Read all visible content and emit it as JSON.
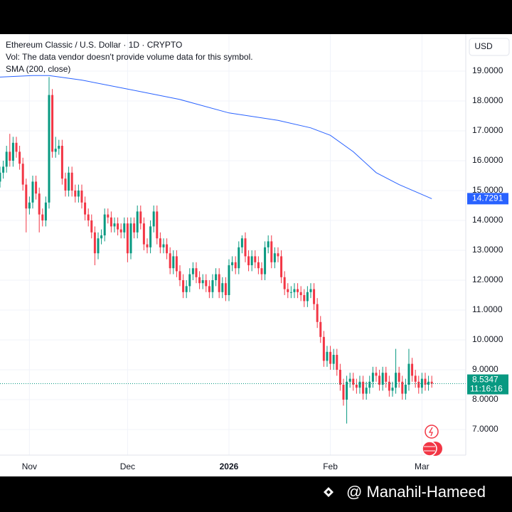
{
  "chart_data": {
    "type": "candlestick",
    "title": "Ethereum Classic / U.S. Dollar · 1D · CRYPTO",
    "subtitle": "Vol: The data vendor doesn't provide volume data for this symbol.",
    "currency": "USD",
    "up_color": "#089981",
    "down_color": "#f23645",
    "x": [
      0,
      1,
      2,
      3,
      4,
      5,
      6,
      7,
      8,
      9,
      10,
      11,
      12,
      13,
      14,
      15,
      16,
      17,
      18,
      19,
      20,
      21,
      22,
      23,
      24,
      25,
      26,
      27,
      28,
      29,
      30,
      31,
      32,
      33,
      34,
      35,
      36,
      37,
      38,
      39,
      40,
      41,
      42,
      43,
      44,
      45,
      46,
      47,
      48,
      49,
      50,
      51,
      52,
      53,
      54,
      55,
      56,
      57,
      58,
      59,
      60,
      61,
      62,
      63,
      64,
      65,
      66,
      67,
      68,
      69,
      70,
      71,
      72,
      73,
      74,
      75,
      76,
      77,
      78,
      79,
      80,
      81,
      82,
      83,
      84,
      85,
      86,
      87,
      88,
      89,
      90,
      91,
      92,
      93,
      94,
      95,
      96,
      97,
      98,
      99,
      100,
      101,
      102,
      103,
      104,
      105,
      106,
      107,
      108,
      109,
      110,
      111,
      112,
      113,
      114,
      115,
      116,
      117,
      118,
      119,
      120,
      121,
      122,
      123,
      124,
      125,
      126,
      127,
      128,
      129,
      130,
      131,
      132
    ],
    "open": [
      15.3,
      15.6,
      15.8,
      16.3,
      16.0,
      16.6,
      16.3,
      15.9,
      15.2,
      14.4,
      14.6,
      15.3,
      14.9,
      14.2,
      14.0,
      14.6,
      18.2,
      16.3,
      16.4,
      16.5,
      15.4,
      15.0,
      15.6,
      15.0,
      14.8,
      15.0,
      14.6,
      14.2,
      14.0,
      13.6,
      12.9,
      13.4,
      13.5,
      14.2,
      14.1,
      13.8,
      13.9,
      13.7,
      13.6,
      13.9,
      12.9,
      13.9,
      13.6,
      14.3,
      13.9,
      13.2,
      13.1,
      13.8,
      14.3,
      13.4,
      13.1,
      13.2,
      12.9,
      12.4,
      12.8,
      12.3,
      12.0,
      11.6,
      11.8,
      12.2,
      12.4,
      12.1,
      11.9,
      12.0,
      11.8,
      11.6,
      12.0,
      12.2,
      11.6,
      11.9,
      11.5,
      12.5,
      12.6,
      12.4,
      13.1,
      13.4,
      12.8,
      12.5,
      12.8,
      12.6,
      12.4,
      12.2,
      13.1,
      13.3,
      12.6,
      12.9,
      12.8,
      12.1,
      11.7,
      11.6,
      11.6,
      11.7,
      11.6,
      11.5,
      11.3,
      11.6,
      11.7,
      11.2,
      10.6,
      10.1,
      9.3,
      9.6,
      9.2,
      9.5,
      9.0,
      8.5,
      8.0,
      8.6,
      8.7,
      8.5,
      8.4,
      8.6,
      8.2,
      8.4,
      8.6,
      8.9,
      8.8,
      8.5,
      8.9,
      8.6,
      8.3,
      8.4,
      8.9,
      8.6,
      8.2,
      8.5,
      9.2,
      8.8,
      8.6,
      8.4,
      8.7,
      8.5,
      8.6
    ],
    "high": [
      15.8,
      16.0,
      16.5,
      16.9,
      16.8,
      16.8,
      16.5,
      16.1,
      15.4,
      14.8,
      15.5,
      15.5,
      15.1,
      14.4,
      14.8,
      18.8,
      18.4,
      16.8,
      16.7,
      16.7,
      15.6,
      15.8,
      15.8,
      15.2,
      15.2,
      15.2,
      14.8,
      14.4,
      14.2,
      13.8,
      13.6,
      13.7,
      14.4,
      14.4,
      14.3,
      14.1,
      14.1,
      13.9,
      14.1,
      14.1,
      14.1,
      14.1,
      14.5,
      14.5,
      14.1,
      13.4,
      14.0,
      14.5,
      14.5,
      13.6,
      13.4,
      13.4,
      13.1,
      13.0,
      13.0,
      12.5,
      12.2,
      12.0,
      12.4,
      12.6,
      12.6,
      12.3,
      12.2,
      12.2,
      12.0,
      12.2,
      12.4,
      12.4,
      12.1,
      12.1,
      12.7,
      12.8,
      12.8,
      13.3,
      13.5,
      13.6,
      13.0,
      13.0,
      13.0,
      12.8,
      12.6,
      13.3,
      13.5,
      13.5,
      13.1,
      13.1,
      13.0,
      12.3,
      11.9,
      11.8,
      11.9,
      11.9,
      11.8,
      11.7,
      11.8,
      11.9,
      11.9,
      11.4,
      10.8,
      10.3,
      9.8,
      9.8,
      9.7,
      9.7,
      9.2,
      8.7,
      8.8,
      8.9,
      8.9,
      8.7,
      8.8,
      8.8,
      8.6,
      8.8,
      9.1,
      9.1,
      9.0,
      9.1,
      9.1,
      8.8,
      8.6,
      9.7,
      9.1,
      8.8,
      8.7,
      9.7,
      9.4,
      9.0,
      8.8,
      8.9,
      8.9,
      8.8,
      8.8
    ],
    "low": [
      15.1,
      15.4,
      15.6,
      15.8,
      15.8,
      16.1,
      15.7,
      15.0,
      13.6,
      14.2,
      14.4,
      14.7,
      13.6,
      13.8,
      13.8,
      14.4,
      16.1,
      16.1,
      16.2,
      15.2,
      14.8,
      14.8,
      14.8,
      14.6,
      14.6,
      14.4,
      14.0,
      13.8,
      13.4,
      12.5,
      12.7,
      13.2,
      13.3,
      13.9,
      13.6,
      13.6,
      13.5,
      13.4,
      13.4,
      12.6,
      12.7,
      13.4,
      13.4,
      13.7,
      13.0,
      12.9,
      12.9,
      13.6,
      13.2,
      12.9,
      12.9,
      12.7,
      12.2,
      12.2,
      12.1,
      11.8,
      11.4,
      11.4,
      11.6,
      12.0,
      11.9,
      11.7,
      11.7,
      11.6,
      11.4,
      11.4,
      11.8,
      11.4,
      11.4,
      11.3,
      11.3,
      12.3,
      12.2,
      12.2,
      12.9,
      12.6,
      12.3,
      12.3,
      12.4,
      12.2,
      12.0,
      12.0,
      12.9,
      12.4,
      12.4,
      12.6,
      11.9,
      11.5,
      11.4,
      11.4,
      11.4,
      11.4,
      11.3,
      11.1,
      11.1,
      11.4,
      11.0,
      10.4,
      9.9,
      9.1,
      9.1,
      9.0,
      9.0,
      8.8,
      8.3,
      7.8,
      7.2,
      8.4,
      8.3,
      8.2,
      8.2,
      8.0,
      8.0,
      8.2,
      8.4,
      8.6,
      8.3,
      8.3,
      8.4,
      8.1,
      8.1,
      8.2,
      8.4,
      8.0,
      8.0,
      8.3,
      8.6,
      8.4,
      8.2,
      8.2,
      8.3,
      8.3,
      8.4
    ],
    "close": [
      15.6,
      15.8,
      16.3,
      16.0,
      16.6,
      16.3,
      15.9,
      15.2,
      14.4,
      14.6,
      15.3,
      14.9,
      14.2,
      14.0,
      14.6,
      18.2,
      16.3,
      16.4,
      16.5,
      15.4,
      15.0,
      15.6,
      15.0,
      14.8,
      15.0,
      14.6,
      14.2,
      14.0,
      13.6,
      12.9,
      13.4,
      13.5,
      14.2,
      14.1,
      13.8,
      13.9,
      13.7,
      13.6,
      13.9,
      12.9,
      13.9,
      13.6,
      14.3,
      13.9,
      13.2,
      13.1,
      13.8,
      14.3,
      13.4,
      13.1,
      13.2,
      12.9,
      12.4,
      12.8,
      12.3,
      12.0,
      11.6,
      11.8,
      12.2,
      12.4,
      12.1,
      11.9,
      12.0,
      11.8,
      11.6,
      12.0,
      12.2,
      11.6,
      11.9,
      11.5,
      12.5,
      12.6,
      12.4,
      13.1,
      13.4,
      12.8,
      12.5,
      12.8,
      12.6,
      12.4,
      12.2,
      13.1,
      13.3,
      12.6,
      12.9,
      12.8,
      12.1,
      11.7,
      11.6,
      11.6,
      11.7,
      11.6,
      11.5,
      11.3,
      11.6,
      11.7,
      11.2,
      10.6,
      10.1,
      9.3,
      9.6,
      9.2,
      9.5,
      9.0,
      8.5,
      8.0,
      8.6,
      8.7,
      8.5,
      8.4,
      8.6,
      8.2,
      8.4,
      8.6,
      8.9,
      8.8,
      8.5,
      8.9,
      8.6,
      8.3,
      8.4,
      8.9,
      8.6,
      8.2,
      8.5,
      9.2,
      8.8,
      8.6,
      8.4,
      8.7,
      8.5,
      8.6,
      8.5347
    ],
    "countdown": "11:16:16",
    "sma": {
      "name": "SMA (200, close)",
      "color": "#2962ff",
      "x": [
        0,
        10,
        15,
        25,
        39,
        55,
        70,
        85,
        95,
        101,
        108,
        115,
        122,
        132
      ],
      "values": [
        18.8,
        18.85,
        18.85,
        18.7,
        18.4,
        18.05,
        17.6,
        17.35,
        17.1,
        16.85,
        16.3,
        15.6,
        15.2,
        14.7291
      ]
    },
    "xlim": [
      0,
      142.4
    ],
    "ylim": [
      6.143,
      20.238
    ],
    "xticks": [
      {
        "value": 9,
        "label": "Nov"
      },
      {
        "value": 39,
        "label": "Dec"
      },
      {
        "value": 70,
        "label": "2026"
      },
      {
        "value": 101,
        "label": "Feb"
      },
      {
        "value": 129,
        "label": "Mar"
      }
    ],
    "yticks": [
      {
        "value": 7,
        "label": "7.0000"
      },
      {
        "value": 8,
        "label": "8.0000"
      },
      {
        "value": 9,
        "label": "9.0000"
      },
      {
        "value": 10,
        "label": "10.0000"
      },
      {
        "value": 11,
        "label": "11.0000"
      },
      {
        "value": 12,
        "label": "12.0000"
      },
      {
        "value": 13,
        "label": "13.0000"
      },
      {
        "value": 14,
        "label": "14.0000"
      },
      {
        "value": 15,
        "label": "15.0000"
      },
      {
        "value": 16,
        "label": "16.0000"
      },
      {
        "value": 17,
        "label": "17.0000"
      },
      {
        "value": 18,
        "label": "18.0000"
      },
      {
        "value": 19,
        "label": "19.0000"
      }
    ],
    "grid": true
  },
  "watermark": "@ Manahil-Hameed"
}
